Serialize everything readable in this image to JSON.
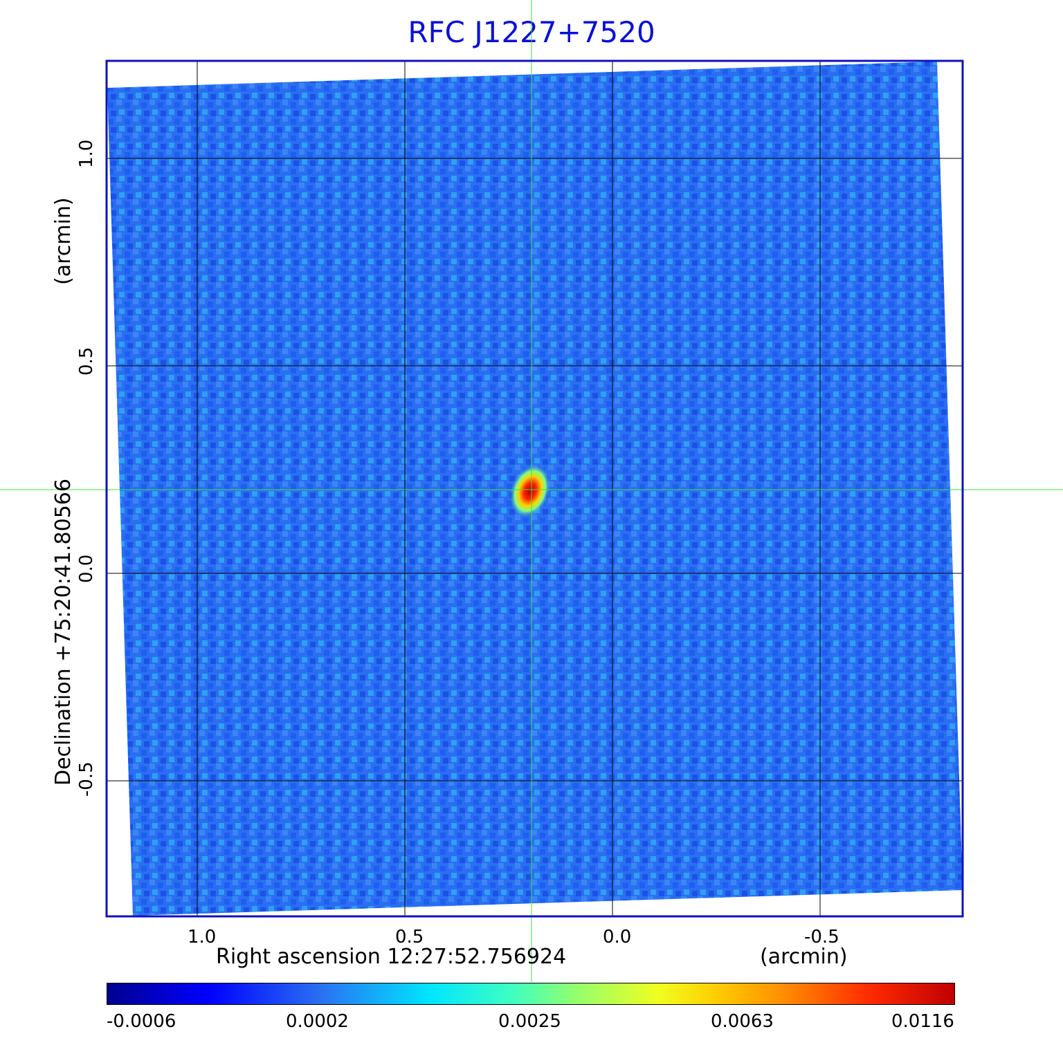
{
  "title": "RFC J1227+7520",
  "x_axis": {
    "label": "Right ascension  12:27:52.756924",
    "unit_label": "(arcmin)",
    "ticks": [
      "1.0",
      "0.5",
      "0.0",
      "-0.5"
    ]
  },
  "y_axis": {
    "label": "Declination  +75:20:41.80566",
    "unit_label": "(arcmin)",
    "ticks": [
      "1.0",
      "0.5",
      "0.0",
      "-0.5"
    ]
  },
  "colorbar": {
    "ticks": [
      "-0.0006",
      "0.0002",
      "0.0025",
      "0.0063",
      "0.0116"
    ]
  },
  "colors": {
    "title": "#0a10d8",
    "frame": "#1010c0",
    "crosshair": "#40e040",
    "background_map": "#2a6ff2"
  }
}
